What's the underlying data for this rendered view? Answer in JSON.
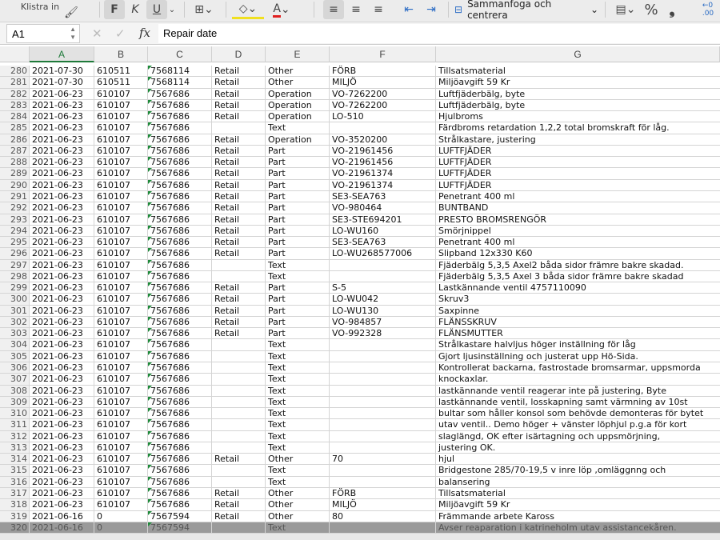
{
  "toolbar": {
    "paste_label": "Klistra in",
    "bold": "F",
    "italic": "K",
    "underline": "U",
    "merge_label": "Sammanfoga och centrera",
    "percent": "%",
    "comma": "❟",
    "font_color_accent": "#e02020",
    "fill_color_accent": "#f0e020"
  },
  "formula_bar": {
    "cell_ref": "A1",
    "fx": "fx",
    "value": "Repair date"
  },
  "columns": [
    "A",
    "B",
    "C",
    "D",
    "E",
    "F",
    "G"
  ],
  "rows": [
    [
      "280",
      "2021-07-30",
      "610511",
      "7568114",
      "Retail",
      "Other",
      "FÖRB",
      "Tillsatsmaterial"
    ],
    [
      "281",
      "2021-07-30",
      "610511",
      "7568114",
      "Retail",
      "Other",
      "MILJÖ",
      "Miljöavgift 59 Kr"
    ],
    [
      "282",
      "2021-06-23",
      "610107",
      "7567686",
      "Retail",
      "Operation",
      "VO-7262200",
      "Luftfjäderbälg, byte"
    ],
    [
      "283",
      "2021-06-23",
      "610107",
      "7567686",
      "Retail",
      "Operation",
      "VO-7262200",
      "Luftfjäderbälg, byte"
    ],
    [
      "284",
      "2021-06-23",
      "610107",
      "7567686",
      "Retail",
      "Operation",
      "LO-510",
      "Hjulbroms"
    ],
    [
      "285",
      "2021-06-23",
      "610107",
      "7567686",
      "",
      "Text",
      "",
      "Färdbroms retardation 1,2,2 total bromskraft för låg."
    ],
    [
      "286",
      "2021-06-23",
      "610107",
      "7567686",
      "Retail",
      "Operation",
      "VO-3520200",
      "Strålkastare, justering"
    ],
    [
      "287",
      "2021-06-23",
      "610107",
      "7567686",
      "Retail",
      "Part",
      "VO-21961456",
      "LUFTFJÄDER"
    ],
    [
      "288",
      "2021-06-23",
      "610107",
      "7567686",
      "Retail",
      "Part",
      "VO-21961456",
      "LUFTFJÄDER"
    ],
    [
      "289",
      "2021-06-23",
      "610107",
      "7567686",
      "Retail",
      "Part",
      "VO-21961374",
      "LUFTFJÄDER"
    ],
    [
      "290",
      "2021-06-23",
      "610107",
      "7567686",
      "Retail",
      "Part",
      "VO-21961374",
      "LUFTFJÄDER"
    ],
    [
      "291",
      "2021-06-23",
      "610107",
      "7567686",
      "Retail",
      "Part",
      "SE3-SEA763",
      "Penetrant 400 ml"
    ],
    [
      "292",
      "2021-06-23",
      "610107",
      "7567686",
      "Retail",
      "Part",
      "VO-980464",
      "BUNTBAND"
    ],
    [
      "293",
      "2021-06-23",
      "610107",
      "7567686",
      "Retail",
      "Part",
      "SE3-STE694201",
      "PRESTO BROMSRENGÖR"
    ],
    [
      "294",
      "2021-06-23",
      "610107",
      "7567686",
      "Retail",
      "Part",
      "LO-WU160",
      "Smörjnippel"
    ],
    [
      "295",
      "2021-06-23",
      "610107",
      "7567686",
      "Retail",
      "Part",
      "SE3-SEA763",
      "Penetrant 400 ml"
    ],
    [
      "296",
      "2021-06-23",
      "610107",
      "7567686",
      "Retail",
      "Part",
      "LO-WU268577006",
      "Slipband 12x330 K60"
    ],
    [
      "297",
      "2021-06-23",
      "610107",
      "7567686",
      "",
      "Text",
      "",
      "Fjäderbälg 5,3,5 Axel2 båda sidor främre bakre skadad."
    ],
    [
      "298",
      "2021-06-23",
      "610107",
      "7567686",
      "",
      "Text",
      "",
      "Fjäderbälg 5,3,5 Axel 3 båda sidor främre bakre skadad"
    ],
    [
      "299",
      "2021-06-23",
      "610107",
      "7567686",
      "Retail",
      "Part",
      "S-5",
      "Lastkännande ventil 4757110090"
    ],
    [
      "300",
      "2021-06-23",
      "610107",
      "7567686",
      "Retail",
      "Part",
      "LO-WU042",
      "Skruv3"
    ],
    [
      "301",
      "2021-06-23",
      "610107",
      "7567686",
      "Retail",
      "Part",
      "LO-WU130",
      "Saxpinne"
    ],
    [
      "302",
      "2021-06-23",
      "610107",
      "7567686",
      "Retail",
      "Part",
      "VO-984857",
      "FLÄNSSKRUV"
    ],
    [
      "303",
      "2021-06-23",
      "610107",
      "7567686",
      "Retail",
      "Part",
      "VO-992328",
      "FLÄNSMUTTER"
    ],
    [
      "304",
      "2021-06-23",
      "610107",
      "7567686",
      "",
      "Text",
      "",
      "Strålkastare halvljus höger inställning för låg"
    ],
    [
      "305",
      "2021-06-23",
      "610107",
      "7567686",
      "",
      "Text",
      "",
      "Gjort ljusinställning och justerat upp Hö-Sida."
    ],
    [
      "306",
      "2021-06-23",
      "610107",
      "7567686",
      "",
      "Text",
      "",
      "Kontrollerat backarna, fastrostade bromsarmar, uppsmorda"
    ],
    [
      "307",
      "2021-06-23",
      "610107",
      "7567686",
      "",
      "Text",
      "",
      "knockaxlar."
    ],
    [
      "308",
      "2021-06-23",
      "610107",
      "7567686",
      "",
      "Text",
      "",
      "lastkännande ventil reagerar inte på justering, Byte"
    ],
    [
      "309",
      "2021-06-23",
      "610107",
      "7567686",
      "",
      "Text",
      "",
      "lastkännande ventil, losskapning samt värmning av 10st"
    ],
    [
      "310",
      "2021-06-23",
      "610107",
      "7567686",
      "",
      "Text",
      "",
      "bultar som håller konsol som behövde demonteras för bytet"
    ],
    [
      "311",
      "2021-06-23",
      "610107",
      "7567686",
      "",
      "Text",
      "",
      "utav ventil.. Demo höger + vänster löphjul p.g.a för kort"
    ],
    [
      "312",
      "2021-06-23",
      "610107",
      "7567686",
      "",
      "Text",
      "",
      "slaglängd, OK efter isärtagning och uppsmörjning,"
    ],
    [
      "313",
      "2021-06-23",
      "610107",
      "7567686",
      "",
      "Text",
      "",
      "justering OK."
    ],
    [
      "314",
      "2021-06-23",
      "610107",
      "7567686",
      "Retail",
      "Other",
      "70",
      "hjul"
    ],
    [
      "315",
      "2021-06-23",
      "610107",
      "7567686",
      "",
      "Text",
      "",
      "Bridgestone 285/70-19,5 v inre löp ,omläggnng och"
    ],
    [
      "316",
      "2021-06-23",
      "610107",
      "7567686",
      "",
      "Text",
      "",
      "balansering"
    ],
    [
      "317",
      "2021-06-23",
      "610107",
      "7567686",
      "Retail",
      "Other",
      "FÖRB",
      "Tillsatsmaterial"
    ],
    [
      "318",
      "2021-06-23",
      "610107",
      "7567686",
      "Retail",
      "Other",
      "MILJÖ",
      "Miljöavgift 59 Kr"
    ],
    [
      "319",
      "2021-06-16",
      "0",
      "7567594",
      "Retail",
      "Other",
      "80",
      "Främmande arbete Kaross"
    ],
    [
      "320",
      "2021-06-16",
      "0",
      "7567594",
      "",
      "Text",
      "",
      "Avser reaparation i katrineholm utav assistancekåren."
    ]
  ]
}
